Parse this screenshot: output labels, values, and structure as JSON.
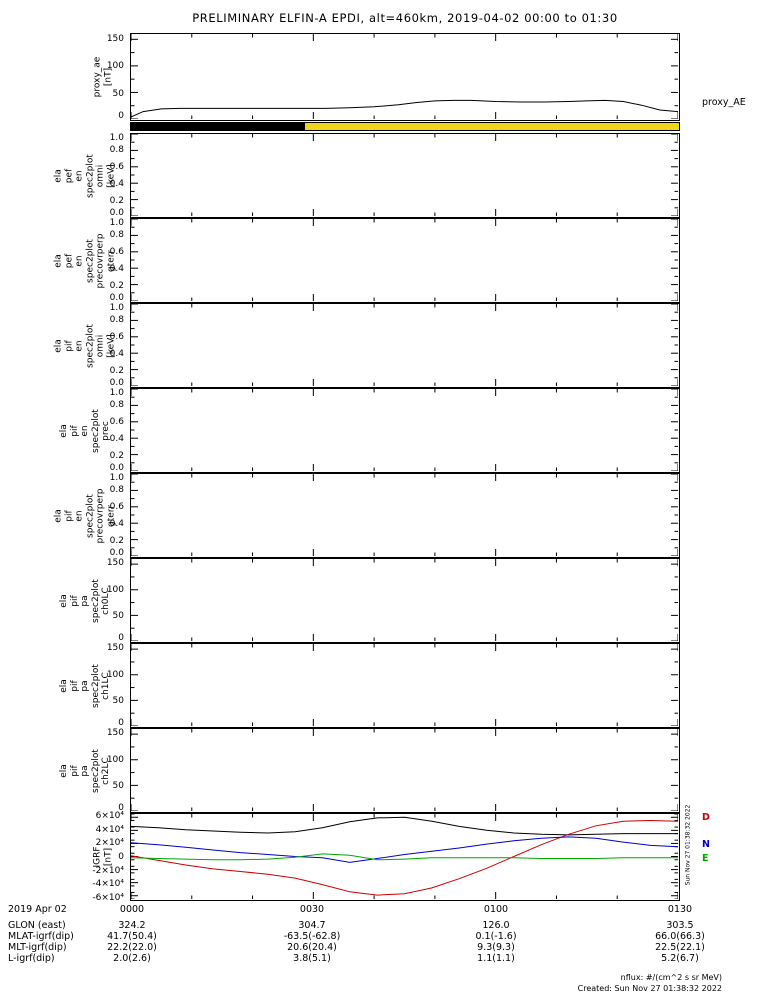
{
  "title": "PRELIMINARY ELFIN-A EPDI, alt=460km, 2019-04-02 00:00 to 01:30",
  "annotations": {
    "proxy_ae_right_label": "proxy_AE",
    "watermark": "Sun Nov 27 01:38:32 2022",
    "nflux": "nflux: #/(cm^2 s sr MeV)",
    "created": "Created: Sun Nov 27 01:38:32 2022"
  },
  "chart_data": {
    "type": "line",
    "title": "PRELIMINARY ELFIN-A EPDI, alt=460km, 2019-04-02 00:00 to 01:30",
    "x_axis": {
      "range": [
        0,
        90
      ],
      "tick_minutes": [
        0,
        30,
        60,
        90
      ],
      "tick_labels": [
        "0000",
        "0030",
        "0100",
        "0130"
      ],
      "minor_every_min": 10
    },
    "colorbar": {
      "segments": [
        {
          "color": "#000000",
          "start_min": 0,
          "end_min": 28.5
        },
        {
          "color": "#efd41c",
          "start_min": 28.5,
          "end_min": 90
        }
      ]
    },
    "igrf_legend": [
      {
        "label": "D",
        "color": "#cc0000"
      },
      {
        "label": "N",
        "color": "#0000cc"
      },
      {
        "label": "E",
        "color": "#00a800"
      }
    ],
    "panels": [
      {
        "id": "proxy-ae",
        "ylabel_lines": [
          "proxy_ae",
          "[nT]"
        ],
        "ylim": [
          0,
          160
        ],
        "yminor_step": 25,
        "yticks": [
          {
            "value": 0,
            "label": "0"
          },
          {
            "value": 50,
            "label": "50"
          },
          {
            "value": 100,
            "label": "100"
          },
          {
            "value": 150,
            "label": "150"
          }
        ],
        "series": [
          {
            "name": "proxy_AE",
            "color": "#000000",
            "x": [
              0,
              2,
              5,
              8,
              12,
              16,
              20,
              24,
              28,
              32,
              36,
              40,
              44,
              47,
              50,
              53,
              56,
              60,
              64,
              68,
              72,
              75,
              78,
              81,
              84,
              87,
              90
            ],
            "y": [
              4,
              14,
              19,
              20,
              20,
              20,
              20,
              20,
              20,
              20,
              21,
              23,
              27,
              31,
              34,
              35,
              35,
              33,
              32,
              32,
              33,
              34,
              35,
              33,
              26,
              17,
              14
            ]
          }
        ]
      },
      {
        "id": "ela-pef-en-spec2plot-omni",
        "ylabel_lines": [
          "ela",
          "pef",
          "en",
          "spec2plot",
          "omni",
          "[keV]"
        ],
        "ylim": [
          0,
          1
        ],
        "yminor_step": 0.1,
        "yticks": [
          {
            "value": 0,
            "label": "0.0"
          },
          {
            "value": 0.2,
            "label": "0.2"
          },
          {
            "value": 0.4,
            "label": "0.4"
          },
          {
            "value": 0.6,
            "label": "0.6"
          },
          {
            "value": 0.8,
            "label": "0.8"
          },
          {
            "value": 1,
            "label": "1.0"
          }
        ],
        "series": []
      },
      {
        "id": "ela-pef-en-spec2plot-precovrperp-gterr",
        "ylabel_lines": [
          "ela",
          "pef",
          "en",
          "spec2plot",
          "precovrperp",
          "gterr"
        ],
        "ylim": [
          0,
          1
        ],
        "yminor_step": 0.1,
        "yticks": [
          {
            "value": 0,
            "label": "0.0"
          },
          {
            "value": 0.2,
            "label": "0.2"
          },
          {
            "value": 0.4,
            "label": "0.4"
          },
          {
            "value": 0.6,
            "label": "0.6"
          },
          {
            "value": 0.8,
            "label": "0.8"
          },
          {
            "value": 1,
            "label": "1.0"
          }
        ],
        "series": []
      },
      {
        "id": "ela-pif-en-spec2plot-omni",
        "ylabel_lines": [
          "ela",
          "pif",
          "en",
          "spec2plot",
          "omni",
          "[keV]"
        ],
        "ylim": [
          0,
          1
        ],
        "yminor_step": 0.1,
        "yticks": [
          {
            "value": 0,
            "label": "0.0"
          },
          {
            "value": 0.2,
            "label": "0.2"
          },
          {
            "value": 0.4,
            "label": "0.4"
          },
          {
            "value": 0.6,
            "label": "0.6"
          },
          {
            "value": 0.8,
            "label": "0.8"
          },
          {
            "value": 1,
            "label": "1.0"
          }
        ],
        "series": []
      },
      {
        "id": "ela-pif-en-spec2plot-prec",
        "ylabel_lines": [
          "ela",
          "pif",
          "en",
          "spec2plot",
          "prec"
        ],
        "ylim": [
          0,
          1
        ],
        "yminor_step": 0.1,
        "yticks": [
          {
            "value": 0,
            "label": "0.0"
          },
          {
            "value": 0.2,
            "label": "0.2"
          },
          {
            "value": 0.4,
            "label": "0.4"
          },
          {
            "value": 0.6,
            "label": "0.6"
          },
          {
            "value": 0.8,
            "label": "0.8"
          },
          {
            "value": 1,
            "label": "1.0"
          }
        ],
        "series": []
      },
      {
        "id": "ela-pif-en-spec2plot-precovrperp-gterr",
        "ylabel_lines": [
          "ela",
          "pif",
          "en",
          "spec2plot",
          "precovrperp",
          "gterr"
        ],
        "ylim": [
          0,
          1
        ],
        "yminor_step": 0.1,
        "yticks": [
          {
            "value": 0,
            "label": "0.0"
          },
          {
            "value": 0.2,
            "label": "0.2"
          },
          {
            "value": 0.4,
            "label": "0.4"
          },
          {
            "value": 0.6,
            "label": "0.6"
          },
          {
            "value": 0.8,
            "label": "0.8"
          },
          {
            "value": 1,
            "label": "1.0"
          }
        ],
        "series": []
      },
      {
        "id": "ela-pif-pa-spec2plot-ch0LC",
        "ylabel_lines": [
          "ela",
          "pif",
          "pa",
          "spec2plot",
          "ch0LC"
        ],
        "ylim": [
          0,
          160
        ],
        "yminor_step": 25,
        "yticks": [
          {
            "value": 0,
            "label": "0"
          },
          {
            "value": 50,
            "label": "50"
          },
          {
            "value": 100,
            "label": "100"
          },
          {
            "value": 150,
            "label": "150"
          }
        ],
        "series": []
      },
      {
        "id": "ela-pif-pa-spec2plot-ch1LC",
        "ylabel_lines": [
          "ela",
          "pif",
          "pa",
          "spec2plot",
          "ch1LC"
        ],
        "ylim": [
          0,
          160
        ],
        "yminor_step": 25,
        "yticks": [
          {
            "value": 0,
            "label": "0"
          },
          {
            "value": 50,
            "label": "50"
          },
          {
            "value": 100,
            "label": "100"
          },
          {
            "value": 150,
            "label": "150"
          }
        ],
        "series": []
      },
      {
        "id": "ela-pif-pa-spec2plot-ch2LC",
        "ylabel_lines": [
          "ela",
          "pif",
          "pa",
          "spec2plot",
          "ch2LC"
        ],
        "ylim": [
          0,
          160
        ],
        "yminor_step": 25,
        "yticks": [
          {
            "value": 0,
            "label": "0"
          },
          {
            "value": 50,
            "label": "50"
          },
          {
            "value": 100,
            "label": "100"
          },
          {
            "value": 150,
            "label": "150"
          }
        ],
        "series": []
      },
      {
        "id": "igrf",
        "ylabel_lines": [
          "IGRF",
          "[nT]"
        ],
        "ylim": [
          -65000,
          65000
        ],
        "yminor_step": 10000,
        "yticks": [
          {
            "value": -60000,
            "label": "-6×10⁴"
          },
          {
            "value": -40000,
            "label": "-4×10⁴"
          },
          {
            "value": -20000,
            "label": "-2×10⁴"
          },
          {
            "value": 0,
            "label": "0"
          },
          {
            "value": 20000,
            "label": "2×10⁴"
          },
          {
            "value": 40000,
            "label": "4×10⁴"
          },
          {
            "value": 60000,
            "label": "6×10⁴"
          }
        ],
        "series": [
          {
            "name": "IGRF_total",
            "color": "#000000",
            "x": [
              0,
              4.5,
              9,
              13.5,
              18,
              22.5,
              27,
              31.5,
              36,
              40.5,
              45,
              49.5,
              54,
              58.5,
              63,
              67.5,
              72,
              76.5,
              81,
              85.5,
              90
            ],
            "y": [
              46000,
              44000,
              41000,
              39000,
              37000,
              36000,
              38000,
              44000,
              53000,
              59000,
              60000,
              54000,
              46000,
              40000,
              36000,
              34000,
              33000,
              34000,
              35000,
              35000,
              35000
            ]
          },
          {
            "name": "IGRF_D",
            "color": "#cc0000",
            "x": [
              0,
              4.5,
              9,
              13.5,
              18,
              22.5,
              27,
              31.5,
              36,
              40.5,
              45,
              49.5,
              54,
              58.5,
              63,
              67.5,
              72,
              76.5,
              81,
              85.5,
              90
            ],
            "y": [
              1000,
              -6000,
              -13000,
              -19000,
              -23000,
              -27000,
              -33000,
              -43000,
              -54000,
              -59000,
              -57000,
              -48000,
              -34000,
              -18000,
              0,
              18000,
              34000,
              47000,
              54000,
              55000,
              54000
            ]
          },
          {
            "name": "IGRF_N",
            "color": "#0000cc",
            "x": [
              0,
              4.5,
              9,
              13.5,
              18,
              22.5,
              27,
              31.5,
              36,
              40.5,
              45,
              49.5,
              54,
              58.5,
              63,
              67.5,
              72,
              76.5,
              81,
              85.5,
              90
            ],
            "y": [
              21000,
              18000,
              14000,
              10000,
              6000,
              3000,
              0,
              -2000,
              -9000,
              -3000,
              3000,
              8000,
              13000,
              19000,
              24000,
              28000,
              30000,
              28000,
              22000,
              17000,
              15000
            ]
          },
          {
            "name": "IGRF_E",
            "color": "#00a800",
            "x": [
              0,
              4.5,
              9,
              13.5,
              18,
              22.5,
              27,
              31.5,
              36,
              40.5,
              45,
              49.5,
              54,
              58.5,
              63,
              67.5,
              72,
              76.5,
              81,
              85.5,
              90
            ],
            "y": [
              -2000,
              -3000,
              -4000,
              -5000,
              -5000,
              -4000,
              -1000,
              4000,
              2000,
              -5000,
              -4000,
              -2000,
              -2000,
              -2000,
              -2000,
              -3000,
              -3000,
              -3000,
              -2000,
              -2000,
              -2000
            ]
          }
        ]
      }
    ]
  },
  "footer": {
    "rows": [
      {
        "label": "2019 Apr 02",
        "values": [
          "0000",
          "0030",
          "0100",
          "0130"
        ]
      },
      {
        "label": "GLON (east)",
        "values": [
          "324.2",
          "304.7",
          "126.0",
          "303.5"
        ]
      },
      {
        "label": "MLAT-igrf(dip)",
        "values": [
          "41.7(50.4)",
          "-63.5(-62.8)",
          "0.1(-1.6)",
          "66.0(66.3)"
        ]
      },
      {
        "label": "MLT-igrf(dip)",
        "values": [
          "22.2(22.0)",
          "20.6(20.4)",
          "9.3(9.3)",
          "22.5(22.1)"
        ]
      },
      {
        "label": "L-igrf(dip)",
        "values": [
          "2.0(2.6)",
          "3.8(5.1)",
          "1.1(1.1)",
          "5.2(6.7)"
        ]
      }
    ]
  }
}
